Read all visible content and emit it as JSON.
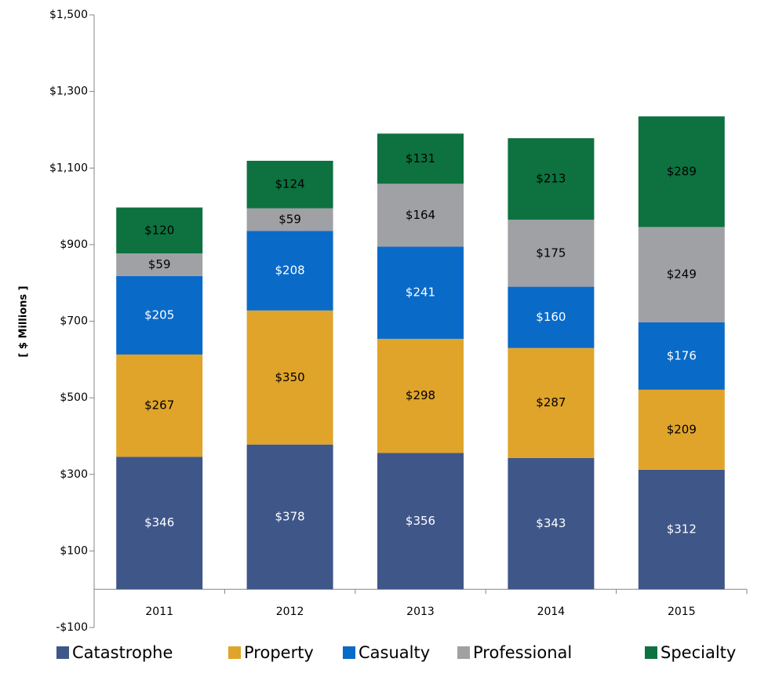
{
  "chart_data": {
    "type": "stacked_bar",
    "y_label": "[ $ Millions ]",
    "categories": [
      "2011",
      "2012",
      "2013",
      "2014",
      "2015"
    ],
    "series": [
      {
        "name": "Catastrophe",
        "color": "#3f5689",
        "label_color": "#ffffff",
        "values": [
          346,
          378,
          356,
          343,
          312
        ],
        "value_labels": [
          "$346",
          "$378",
          "$356",
          "$343",
          "$312"
        ]
      },
      {
        "name": "Property",
        "color": "#e0a42a",
        "label_color": "#000000",
        "values": [
          267,
          350,
          298,
          287,
          209
        ],
        "value_labels": [
          "$267",
          "$350",
          "$298",
          "$287",
          "$209"
        ]
      },
      {
        "name": "Casualty",
        "color": "#0a6ac8",
        "label_color": "#ffffff",
        "values": [
          205,
          208,
          241,
          160,
          176
        ],
        "value_labels": [
          "$205",
          "$208",
          "$241",
          "$160",
          "$176"
        ]
      },
      {
        "name": "Professional",
        "color": "#a0a1a4",
        "label_color": "#000000",
        "values": [
          59,
          59,
          164,
          175,
          249
        ],
        "value_labels": [
          "$59",
          "$59",
          "$164",
          "$175",
          "$249"
        ]
      },
      {
        "name": "Specialty",
        "color": "#0d7240",
        "label_color": "#000000",
        "values": [
          120,
          124,
          131,
          213,
          289
        ],
        "value_labels": [
          "$120",
          "$124",
          "$131",
          "$213",
          "$289"
        ]
      }
    ],
    "ylim": [
      -100,
      1500
    ],
    "yticks": [
      {
        "value": -100,
        "label": "-$100"
      },
      {
        "value": 100,
        "label": "$100"
      },
      {
        "value": 300,
        "label": "$300"
      },
      {
        "value": 500,
        "label": "$500"
      },
      {
        "value": 700,
        "label": "$700"
      },
      {
        "value": 900,
        "label": "$900"
      },
      {
        "value": 1100,
        "label": "$1,100"
      },
      {
        "value": 1300,
        "label": "$1,300"
      },
      {
        "value": 1500,
        "label": "$1,500"
      }
    ],
    "legend": "bottom",
    "grid": false
  }
}
